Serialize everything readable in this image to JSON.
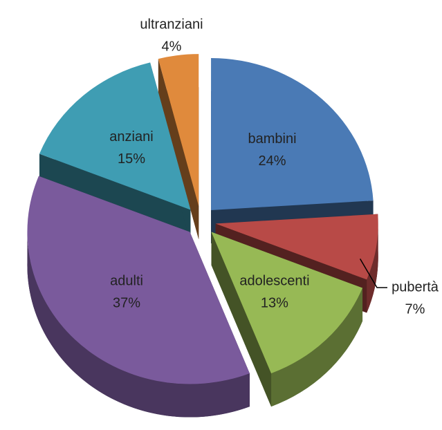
{
  "chart_data": {
    "type": "pie",
    "categories": [
      "bambini",
      "pubertà",
      "adolescenti",
      "adulti",
      "anziani",
      "ultranziani"
    ],
    "values": [
      24,
      7,
      13,
      37,
      15,
      4
    ],
    "value_labels": [
      "24%",
      "7%",
      "13%",
      "37%",
      "15%",
      "4%"
    ],
    "colors": [
      "#4a7ab5",
      "#b84a47",
      "#97b955",
      "#7a5a9c",
      "#3f9db3",
      "#e08a3c"
    ]
  }
}
